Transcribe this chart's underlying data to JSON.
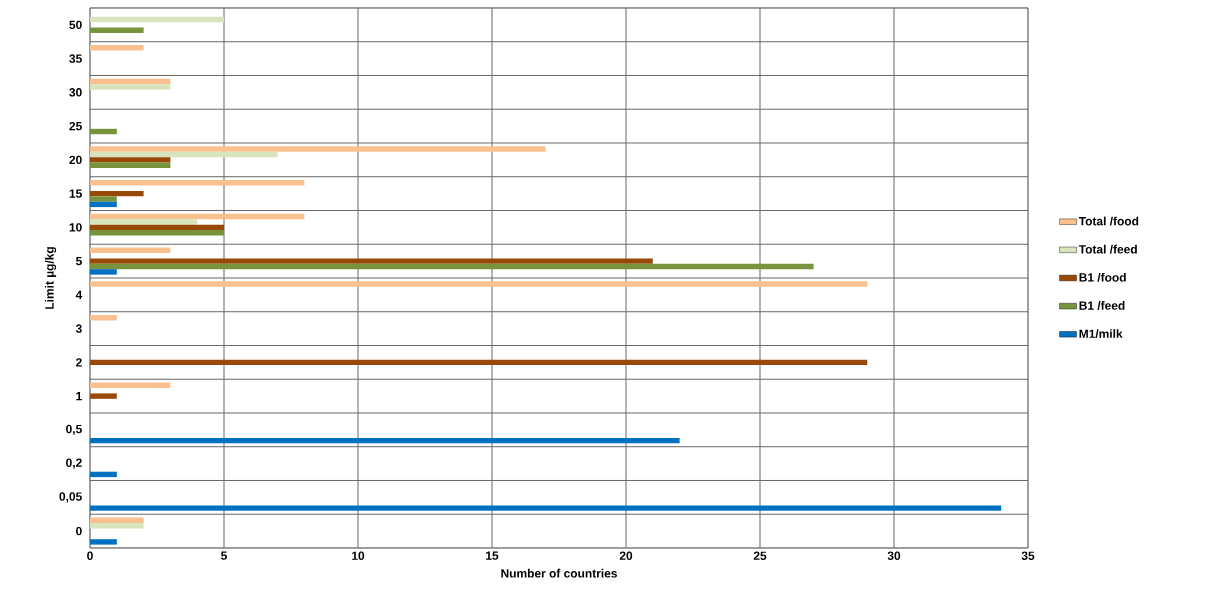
{
  "chart_data": {
    "type": "bar",
    "orientation": "horizontal",
    "xlabel": "Number of countries",
    "ylabel": "Limit µg/kg",
    "categories": [
      "50",
      "35",
      "30",
      "25",
      "20",
      "15",
      "10",
      "5",
      "4",
      "3",
      "2",
      "1",
      "0,5",
      "0,2",
      "0,05",
      "0"
    ],
    "xlim": [
      0,
      35
    ],
    "xticks": [
      0,
      5,
      10,
      15,
      20,
      25,
      30,
      35
    ],
    "grid": true,
    "legend": "right",
    "series": [
      {
        "name": "Total /food",
        "color": "#fac090",
        "values": [
          null,
          2,
          3,
          null,
          17,
          8,
          8,
          3,
          29,
          1,
          null,
          3,
          null,
          null,
          null,
          2
        ]
      },
      {
        "name": "Total /feed",
        "color": "#d7e4bd",
        "values": [
          5,
          null,
          3,
          null,
          7,
          null,
          4,
          null,
          null,
          null,
          null,
          null,
          null,
          null,
          null,
          2
        ]
      },
      {
        "name": "B1 /food",
        "color": "#984807",
        "values": [
          null,
          null,
          null,
          null,
          3,
          2,
          5,
          21,
          null,
          null,
          29,
          1,
          null,
          null,
          null,
          null
        ]
      },
      {
        "name": "B1 /feed",
        "color": "#77933c",
        "values": [
          2,
          null,
          null,
          1,
          3,
          1,
          5,
          27,
          null,
          null,
          null,
          null,
          null,
          null,
          null,
          null
        ]
      },
      {
        "name": "M1/milk",
        "color": "#0070c0",
        "values": [
          null,
          null,
          null,
          null,
          null,
          1,
          null,
          1,
          null,
          null,
          null,
          null,
          22,
          1,
          34,
          1
        ]
      }
    ]
  }
}
